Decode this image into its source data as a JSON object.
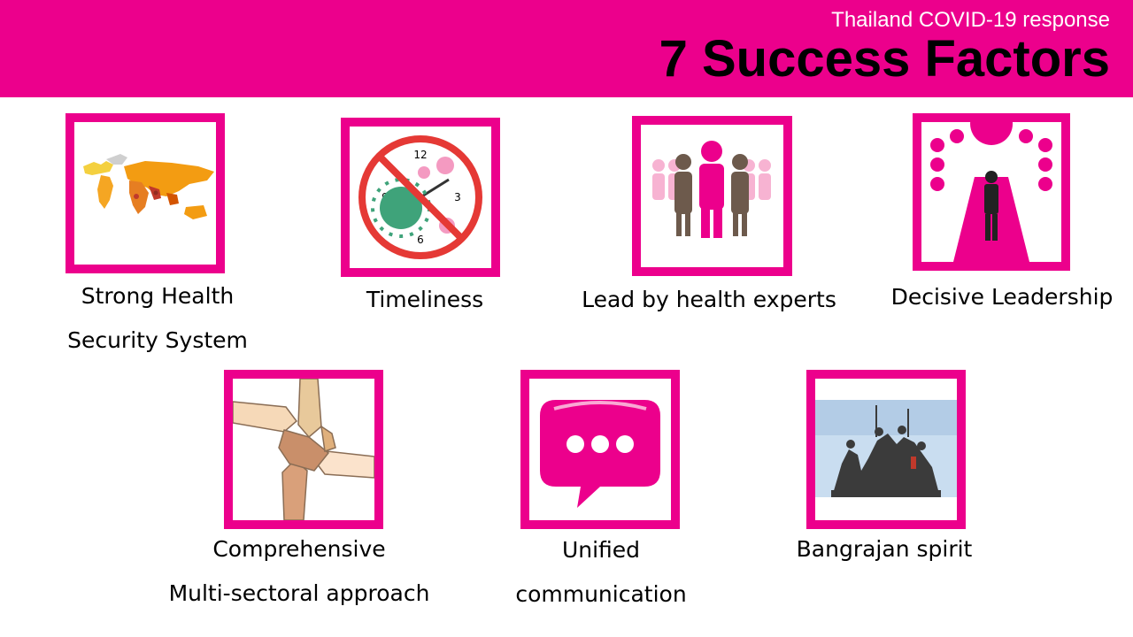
{
  "header": {
    "subtitle": "Thailand COVID-19 response",
    "title": "7 Success Factors",
    "color": "#EC008C"
  },
  "factors": [
    {
      "icon": "world-map-icon",
      "lines": [
        "Strong Health",
        "Security System"
      ]
    },
    {
      "icon": "no-virus-clock-icon",
      "lines": [
        "Timeliness"
      ]
    },
    {
      "icon": "expert-group-icon",
      "lines": [
        "Lead by health experts"
      ]
    },
    {
      "icon": "leader-keyhole-icon",
      "lines": [
        "Decisive Leadership"
      ]
    },
    {
      "icon": "joined-hands-icon",
      "lines": [
        "Comprehensive",
        "Multi-sectoral approach"
      ]
    },
    {
      "icon": "speech-bubble-icon",
      "lines": [
        "Unified",
        "communication"
      ]
    },
    {
      "icon": "bangrajan-monument-icon",
      "lines": [
        "Bangrajan spirit"
      ]
    }
  ]
}
